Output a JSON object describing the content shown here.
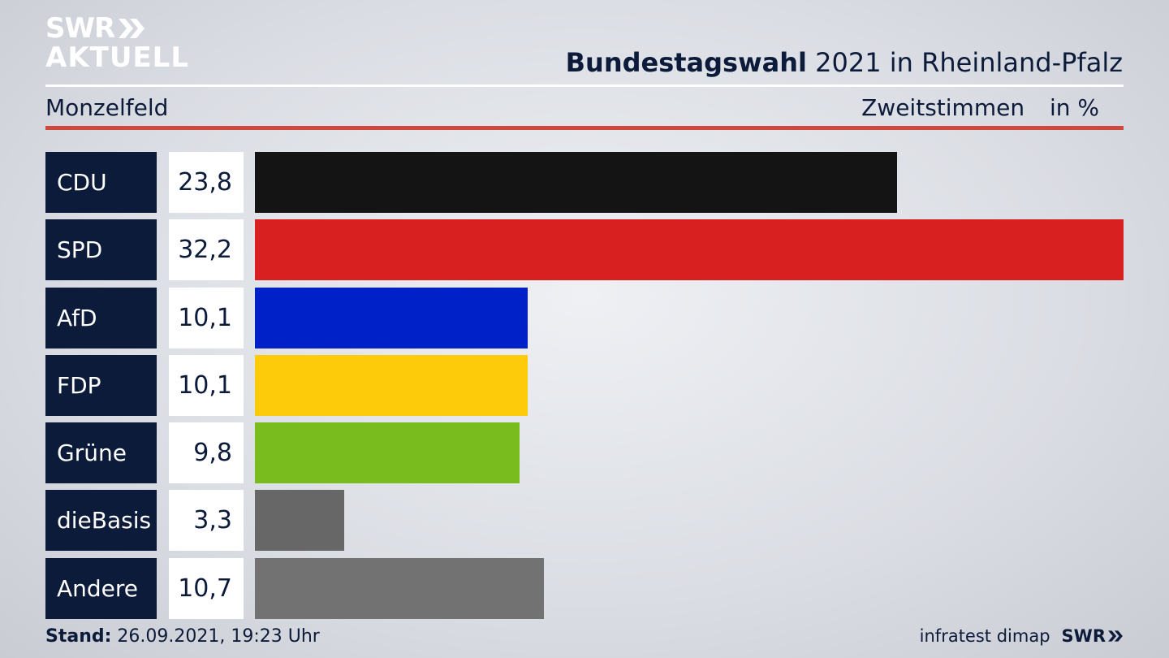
{
  "brand": {
    "logo_line1": "SWR",
    "logo_line2": "AKTUELL",
    "logo_icon": "double-chevron-icon"
  },
  "header": {
    "title_bold": "Bundestagswahl",
    "title_rest": "2021 in Rheinland-Pfalz",
    "location": "Monzelfeld",
    "measure": "Zweitstimmen",
    "unit": "in %"
  },
  "colors": {
    "navy": "#0d1b3a",
    "accent_red": "#d0473e"
  },
  "chart_data": {
    "type": "bar",
    "orientation": "horizontal",
    "xlim": [
      0,
      32.2
    ],
    "categories": [
      "CDU",
      "SPD",
      "AfD",
      "FDP",
      "Grüne",
      "dieBasis",
      "Andere"
    ],
    "values": [
      23.8,
      32.2,
      10.1,
      10.1,
      9.8,
      3.3,
      10.7
    ],
    "value_labels": [
      "23,8",
      "32,2",
      "10,1",
      "10,1",
      "9,8",
      "3,3",
      "10,7"
    ],
    "colors": [
      "#141414",
      "#d82020",
      "#0121c8",
      "#fecb0a",
      "#78bc1e",
      "#676767",
      "#727272"
    ]
  },
  "footer": {
    "stand_label": "Stand:",
    "stand_value": "26.09.2021, 19:23 Uhr",
    "source": "infratest dimap",
    "swr": "SWR"
  }
}
